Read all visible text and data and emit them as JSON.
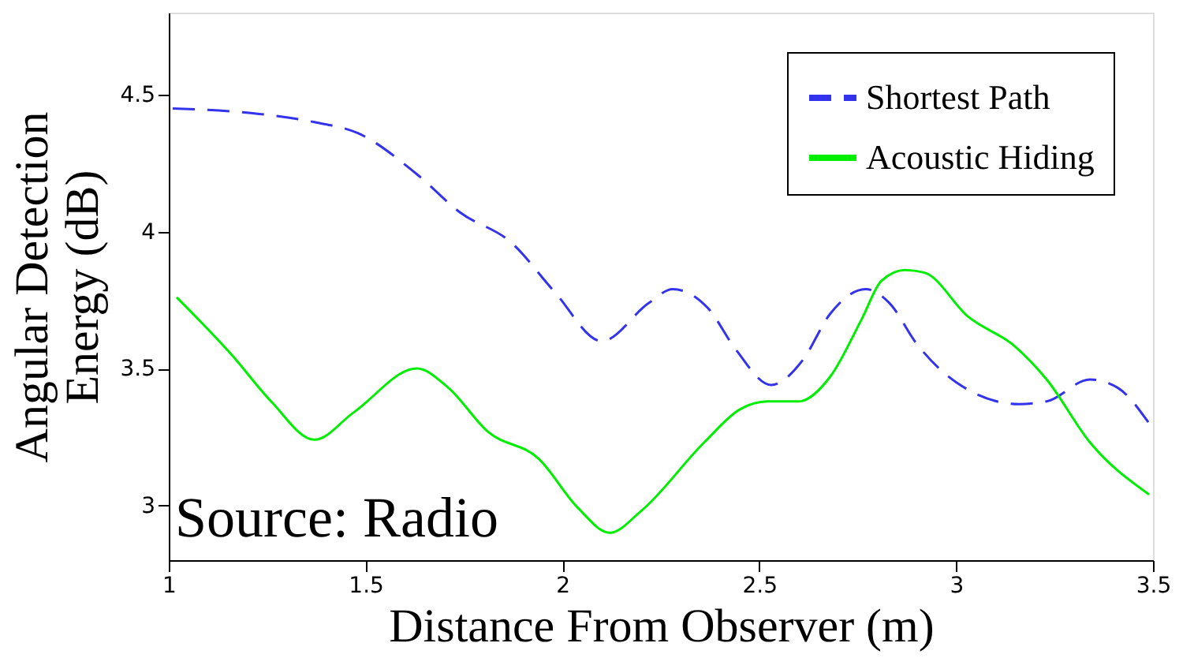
{
  "chart_data": {
    "type": "line",
    "xlabel": "Distance From Observer (m)",
    "ylabel": "Angular Detection Energy (dB)",
    "xlim": [
      1,
      3.5
    ],
    "xticks": [
      1,
      1.5,
      2,
      2.5,
      3,
      3.5
    ],
    "ylim": [
      2.8,
      4.8
    ],
    "yticks": [
      3,
      3.5,
      4,
      4.5
    ],
    "grid": false,
    "legend": "top right",
    "marker": "none",
    "annotations": [
      "Source: Radio"
    ],
    "series": [
      {
        "name": "Shortest Path",
        "color": "#3333ee",
        "line_style": "dashed",
        "x": [
          1.01,
          1.23,
          1.37,
          1.48,
          1.63,
          1.74,
          1.87,
          1.98,
          2.1,
          2.22,
          2.28,
          2.37,
          2.44,
          2.53,
          2.61,
          2.68,
          2.77,
          2.83,
          2.9,
          3.0,
          3.16,
          3.23,
          3.34,
          3.41,
          3.49
        ],
        "values": [
          4.45,
          4.43,
          4.4,
          4.36,
          4.21,
          4.07,
          3.96,
          3.78,
          3.6,
          3.74,
          3.79,
          3.72,
          3.57,
          3.44,
          3.53,
          3.7,
          3.79,
          3.74,
          3.59,
          3.45,
          3.37,
          3.38,
          3.46,
          3.43,
          3.3
        ]
      },
      {
        "name": "Acoustic Hiding",
        "color": "#00ee00",
        "line_style": "solid",
        "x": [
          1.02,
          1.16,
          1.26,
          1.37,
          1.47,
          1.63,
          1.71,
          1.81,
          1.94,
          2.04,
          2.12,
          2.2,
          2.36,
          2.45,
          2.52,
          2.6,
          2.68,
          2.76,
          2.81,
          2.87,
          2.92,
          3.03,
          3.15,
          3.23,
          3.34,
          3.49
        ],
        "values": [
          3.76,
          3.55,
          3.38,
          3.24,
          3.34,
          3.5,
          3.43,
          3.27,
          3.17,
          2.99,
          2.9,
          2.98,
          3.23,
          3.35,
          3.38,
          3.38,
          3.47,
          3.68,
          3.82,
          3.86,
          3.85,
          3.69,
          3.58,
          3.46,
          3.23,
          3.04
        ]
      }
    ]
  }
}
